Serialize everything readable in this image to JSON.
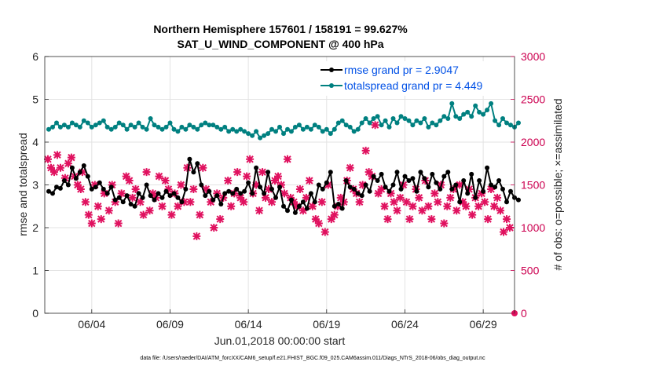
{
  "chart_data": {
    "type": "line",
    "title_line1": "Northern Hemisphere 157601 / 158191 = 99.627%",
    "title_line2": "SAT_U_WIND_COMPONENT @ 400 hPa",
    "xlabel": "Jun.01,2018 00:00:00 start",
    "ylabel_left": "rmse and totalspread",
    "ylabel_right": "# of obs: o=possible; ×=assimilated",
    "xlim": [
      1.0,
      31.0
    ],
    "ylim_left": [
      0,
      6
    ],
    "ylim_right": [
      0,
      3000
    ],
    "x_ticks": [
      {
        "value": 4,
        "label": "06/04"
      },
      {
        "value": 9,
        "label": "06/09"
      },
      {
        "value": 14,
        "label": "06/14"
      },
      {
        "value": 19,
        "label": "06/19"
      },
      {
        "value": 24,
        "label": "06/24"
      },
      {
        "value": 29,
        "label": "06/29"
      }
    ],
    "y_ticks_left": [
      "0",
      "1",
      "2",
      "3",
      "4",
      "5",
      "6"
    ],
    "y_ticks_right": [
      "0",
      "500",
      "1000",
      "1500",
      "2000",
      "2500",
      "3000"
    ],
    "grid": true,
    "colors": {
      "rmse": "#000000",
      "spread": "#008080",
      "obs": "#e0115f",
      "right_axis": "#cc0050",
      "legend_text": "#0050e6"
    },
    "legend": [
      {
        "name": "rmse grand pr = 2.9047",
        "series": "rmse"
      },
      {
        "name": "totalspread grand pr = 4.449",
        "series": "totalspread"
      }
    ],
    "series": [
      {
        "name": "rmse",
        "x_start": 1.25,
        "x_step": 0.25,
        "values": [
          2.85,
          2.8,
          2.95,
          2.92,
          3.1,
          3.0,
          3.4,
          3.15,
          3.3,
          3.45,
          3.2,
          2.9,
          2.95,
          3.05,
          2.9,
          2.8,
          2.95,
          2.65,
          2.7,
          2.6,
          2.75,
          2.55,
          2.5,
          2.8,
          2.7,
          3.0,
          2.75,
          2.65,
          2.8,
          2.7,
          2.85,
          2.75,
          2.8,
          2.7,
          2.6,
          2.9,
          3.6,
          3.3,
          3.5,
          3.0,
          2.75,
          2.85,
          2.65,
          2.75,
          2.55,
          2.8,
          2.85,
          2.8,
          2.9,
          2.8,
          2.85,
          3.05,
          2.8,
          3.4,
          2.95,
          2.8,
          3.3,
          2.9,
          2.7,
          2.95,
          2.5,
          2.4,
          2.65,
          2.35,
          2.5,
          2.6,
          2.45,
          2.8,
          2.6,
          3.0,
          2.9,
          3.05,
          3.3,
          2.5,
          2.55,
          2.45,
          3.1,
          2.95,
          2.9,
          2.8,
          2.75,
          3.0,
          2.85,
          3.2,
          3.1,
          3.25,
          2.95,
          2.85,
          3.0,
          3.3,
          2.9,
          3.2,
          3.1,
          3.15,
          2.85,
          3.3,
          3.15,
          2.95,
          3.25,
          3.05,
          2.9,
          3.2,
          3.3,
          2.9,
          3.0,
          2.6,
          3.1,
          2.8,
          3.25,
          2.7,
          3.1,
          2.85,
          3.4,
          3.0,
          2.95,
          3.1,
          2.9,
          2.6,
          2.85,
          2.7,
          2.65
        ]
      },
      {
        "name": "totalspread",
        "x_start": 1.25,
        "x_step": 0.25,
        "values": [
          4.3,
          4.35,
          4.45,
          4.35,
          4.4,
          4.35,
          4.45,
          4.4,
          4.35,
          4.5,
          4.45,
          4.35,
          4.4,
          4.45,
          4.5,
          4.35,
          4.3,
          4.35,
          4.45,
          4.4,
          4.3,
          4.4,
          4.35,
          4.45,
          4.35,
          4.3,
          4.55,
          4.4,
          4.35,
          4.3,
          4.35,
          4.45,
          4.3,
          4.25,
          4.35,
          4.3,
          4.4,
          4.35,
          4.3,
          4.4,
          4.45,
          4.4,
          4.4,
          4.35,
          4.3,
          4.35,
          4.25,
          4.3,
          4.25,
          4.3,
          4.25,
          4.2,
          4.15,
          4.25,
          4.1,
          4.15,
          4.2,
          4.3,
          4.25,
          4.35,
          4.2,
          4.3,
          4.25,
          4.35,
          4.4,
          4.3,
          4.35,
          4.3,
          4.4,
          4.35,
          4.25,
          4.3,
          4.2,
          4.3,
          4.45,
          4.5,
          4.4,
          4.35,
          4.25,
          4.3,
          4.45,
          4.55,
          4.45,
          4.55,
          4.6,
          4.4,
          4.5,
          4.35,
          4.55,
          4.45,
          4.6,
          4.55,
          4.5,
          4.4,
          4.5,
          4.45,
          4.55,
          4.35,
          4.45,
          4.4,
          4.5,
          4.6,
          4.55,
          4.9,
          4.6,
          4.55,
          4.65,
          4.7,
          4.6,
          4.85,
          4.7,
          4.65,
          4.75,
          4.9,
          4.5,
          4.4,
          4.55,
          4.45,
          4.4,
          4.35,
          4.45
        ]
      },
      {
        "name": "assimilated_obs",
        "axis": "right",
        "points": [
          [
            1.2,
            1800
          ],
          [
            1.4,
            1700
          ],
          [
            1.6,
            1650
          ],
          [
            1.8,
            1850
          ],
          [
            2.0,
            1700
          ],
          [
            2.3,
            1580
          ],
          [
            2.5,
            1750
          ],
          [
            2.7,
            1820
          ],
          [
            2.9,
            1600
          ],
          [
            3.1,
            1500
          ],
          [
            3.3,
            1450
          ],
          [
            3.4,
            1650
          ],
          [
            3.6,
            1300
          ],
          [
            3.8,
            1150
          ],
          [
            4.0,
            1050
          ],
          [
            4.2,
            1500
          ],
          [
            4.4,
            1250
          ],
          [
            4.6,
            1100
          ],
          [
            4.8,
            1400
          ],
          [
            5.1,
            1200
          ],
          [
            5.3,
            1500
          ],
          [
            5.5,
            1300
          ],
          [
            5.7,
            1050
          ],
          [
            5.9,
            1400
          ],
          [
            6.2,
            1600
          ],
          [
            6.4,
            1550
          ],
          [
            6.6,
            1350
          ],
          [
            6.8,
            1450
          ],
          [
            7.1,
            1300
          ],
          [
            7.3,
            1150
          ],
          [
            7.5,
            1650
          ],
          [
            7.7,
            1200
          ],
          [
            7.9,
            1400
          ],
          [
            8.1,
            1350
          ],
          [
            8.3,
            1600
          ],
          [
            8.5,
            1250
          ],
          [
            8.7,
            1550
          ],
          [
            8.9,
            1450
          ],
          [
            9.1,
            1150
          ],
          [
            9.3,
            1400
          ],
          [
            9.5,
            1250
          ],
          [
            9.7,
            1500
          ],
          [
            9.9,
            1300
          ],
          [
            10.1,
            1700
          ],
          [
            10.3,
            1300
          ],
          [
            10.5,
            1450
          ],
          [
            10.7,
            900
          ],
          [
            10.9,
            1150
          ],
          [
            11.1,
            1700
          ],
          [
            11.3,
            1450
          ],
          [
            11.6,
            1300
          ],
          [
            11.8,
            1000
          ],
          [
            12.0,
            1400
          ],
          [
            12.2,
            1100
          ],
          [
            12.4,
            1350
          ],
          [
            12.7,
            1550
          ],
          [
            12.9,
            1250
          ],
          [
            13.1,
            1400
          ],
          [
            13.3,
            1650
          ],
          [
            13.5,
            1350
          ],
          [
            13.7,
            1300
          ],
          [
            13.9,
            1600
          ],
          [
            14.1,
            1800
          ],
          [
            14.3,
            1400
          ],
          [
            14.5,
            1500
          ],
          [
            14.7,
            1200
          ],
          [
            14.9,
            1650
          ],
          [
            15.1,
            1350
          ],
          [
            15.3,
            1450
          ],
          [
            15.5,
            1300
          ],
          [
            15.7,
            1550
          ],
          [
            15.9,
            1600
          ],
          [
            16.1,
            1500
          ],
          [
            16.3,
            1400
          ],
          [
            16.5,
            1800
          ],
          [
            16.7,
            1350
          ],
          [
            16.9,
            1300
          ],
          [
            17.1,
            1250
          ],
          [
            17.3,
            1450
          ],
          [
            17.5,
            1200
          ],
          [
            17.7,
            1350
          ],
          [
            17.9,
            1550
          ],
          [
            18.1,
            1250
          ],
          [
            18.3,
            1100
          ],
          [
            18.5,
            1050
          ],
          [
            18.7,
            1300
          ],
          [
            18.9,
            950
          ],
          [
            19.1,
            1500
          ],
          [
            19.3,
            1100
          ],
          [
            19.5,
            1150
          ],
          [
            19.7,
            1250
          ],
          [
            19.9,
            1350
          ],
          [
            20.1,
            1300
          ],
          [
            20.3,
            1550
          ],
          [
            20.5,
            1700
          ],
          [
            20.7,
            1450
          ],
          [
            20.9,
            1400
          ],
          [
            21.1,
            1300
          ],
          [
            21.3,
            1500
          ],
          [
            21.5,
            1900
          ],
          [
            21.7,
            1650
          ],
          [
            21.9,
            1600
          ],
          [
            22.1,
            2200
          ],
          [
            22.3,
            1400
          ],
          [
            22.5,
            1450
          ],
          [
            22.7,
            1250
          ],
          [
            22.9,
            1100
          ],
          [
            23.1,
            1400
          ],
          [
            23.3,
            1300
          ],
          [
            23.5,
            1200
          ],
          [
            23.7,
            1350
          ],
          [
            23.9,
            1500
          ],
          [
            24.1,
            1300
          ],
          [
            24.3,
            1100
          ],
          [
            24.5,
            1250
          ],
          [
            24.7,
            1450
          ],
          [
            24.9,
            1350
          ],
          [
            25.1,
            1200
          ],
          [
            25.3,
            1550
          ],
          [
            25.5,
            1250
          ],
          [
            25.7,
            1100
          ],
          [
            25.9,
            1400
          ],
          [
            26.1,
            1300
          ],
          [
            26.3,
            1500
          ],
          [
            26.5,
            1050
          ],
          [
            26.7,
            1250
          ],
          [
            26.9,
            1350
          ],
          [
            27.1,
            1450
          ],
          [
            27.3,
            1200
          ],
          [
            27.5,
            1500
          ],
          [
            27.7,
            1300
          ],
          [
            27.9,
            1250
          ],
          [
            28.1,
            1450
          ],
          [
            28.3,
            1150
          ],
          [
            28.5,
            1350
          ],
          [
            28.7,
            1250
          ],
          [
            28.9,
            1400
          ],
          [
            29.1,
            1300
          ],
          [
            29.3,
            1100
          ],
          [
            29.5,
            1450
          ],
          [
            29.7,
            1250
          ],
          [
            29.9,
            1350
          ],
          [
            30.1,
            1200
          ],
          [
            30.3,
            950
          ],
          [
            30.5,
            1100
          ],
          [
            30.7,
            1000
          ]
        ]
      }
    ],
    "footnote": "data file: /Users/raeder/DAI/ATM_forcXX/CAM6_setup/f.e21.FHIST_BGC.f09_025.CAM6assim.011/Diags_NTrS_2018-06/obs_diag_output.nc"
  }
}
